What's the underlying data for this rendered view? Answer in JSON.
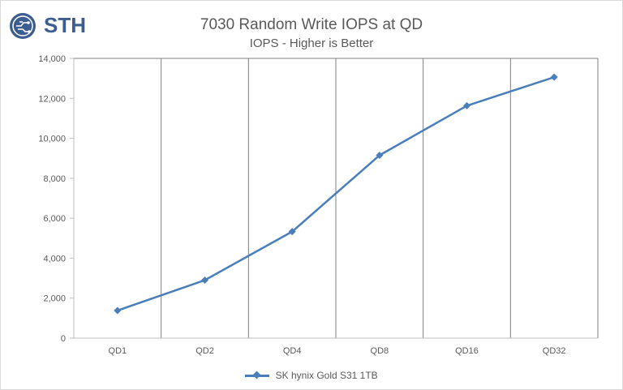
{
  "logo": {
    "text": "STH",
    "icon": "circuit-head-icon"
  },
  "colors": {
    "series": "#4a7ebb",
    "grid": "#7f7f7f",
    "axis": "#bfbfbf",
    "text": "#595959"
  },
  "chart_data": {
    "type": "line",
    "title": "7030 Random Write IOPS at QD",
    "subtitle": "IOPS - Higher is Better",
    "categories": [
      "QD1",
      "QD2",
      "QD4",
      "QD8",
      "QD16",
      "QD32"
    ],
    "series": [
      {
        "name": "SK hynix Gold S31 1TB",
        "values": [
          1380,
          2900,
          5330,
          9150,
          11630,
          13060
        ]
      }
    ],
    "ylim": [
      0,
      14000
    ],
    "yticks": [
      "0",
      "2,000",
      "4,000",
      "6,000",
      "8,000",
      "10,000",
      "12,000",
      "14,000"
    ],
    "grid": "vertical",
    "legend": "bottom"
  }
}
